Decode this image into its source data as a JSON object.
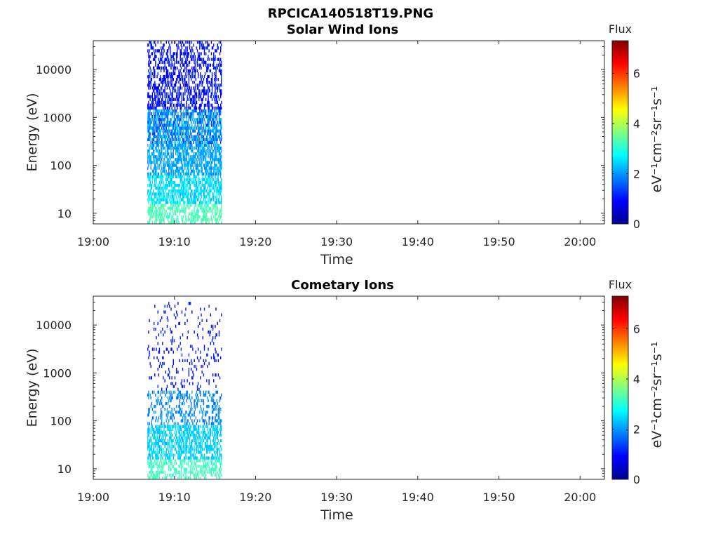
{
  "figure": {
    "title": "RPCICA140518T19.PNG"
  },
  "chart_data": [
    {
      "type": "heatmap",
      "title": "Solar Wind Ions",
      "xlabel": "Time",
      "ylabel": "Energy (eV)",
      "x_ticks": [
        "19:00",
        "19:10",
        "19:20",
        "19:30",
        "19:40",
        "19:50",
        "20:00"
      ],
      "x_range": [
        "19:00",
        "20:03"
      ],
      "y_scale": "log",
      "y_ticks": [
        10,
        100,
        1000,
        10000
      ],
      "y_range": [
        6,
        40000
      ],
      "data_time_range": [
        "19:06:40",
        "19:15:50"
      ],
      "colorbar": {
        "title": "Flux",
        "label": "eV⁻¹cm⁻²sr⁻¹s⁻¹",
        "range": [
          0,
          7.3
        ],
        "ticks": [
          0,
          2,
          4,
          6
        ],
        "colormap": "jet"
      },
      "bands": [
        {
          "energy_range": [
            6,
            15
          ],
          "flux_range": [
            3.0,
            3.5
          ]
        },
        {
          "energy_range": [
            15,
            60
          ],
          "flux_range": [
            2.2,
            2.8
          ]
        },
        {
          "energy_range": [
            60,
            300
          ],
          "flux_range": [
            1.8,
            2.4
          ]
        },
        {
          "energy_range": [
            300,
            1500
          ],
          "flux_range": [
            1.2,
            2.6
          ]
        },
        {
          "energy_range": [
            1500,
            40000
          ],
          "flux_range": [
            0.7,
            1.3
          ]
        }
      ]
    },
    {
      "type": "heatmap",
      "title": "Cometary Ions",
      "xlabel": "Time",
      "ylabel": "Energy (eV)",
      "x_ticks": [
        "19:00",
        "19:10",
        "19:20",
        "19:30",
        "19:40",
        "19:50",
        "20:00"
      ],
      "x_range": [
        "19:00",
        "20:03"
      ],
      "y_scale": "log",
      "y_ticks": [
        10,
        100,
        1000,
        10000
      ],
      "y_range": [
        6,
        40000
      ],
      "data_time_range": [
        "19:06:40",
        "19:15:50"
      ],
      "colorbar": {
        "title": "Flux",
        "label": "eV⁻¹cm⁻²sr⁻¹s⁻¹",
        "range": [
          0,
          7.3
        ],
        "ticks": [
          0,
          2,
          4,
          6
        ],
        "colormap": "jet"
      },
      "bands": [
        {
          "energy_range": [
            6,
            15
          ],
          "flux_range": [
            3.0,
            3.4
          ]
        },
        {
          "energy_range": [
            15,
            80
          ],
          "flux_range": [
            2.2,
            2.6
          ]
        },
        {
          "energy_range": [
            80,
            400
          ],
          "flux_range": [
            1.6,
            2.2
          ]
        },
        {
          "energy_range": [
            400,
            30000
          ],
          "flux_range": [
            0.8,
            1.3
          ]
        }
      ]
    }
  ]
}
